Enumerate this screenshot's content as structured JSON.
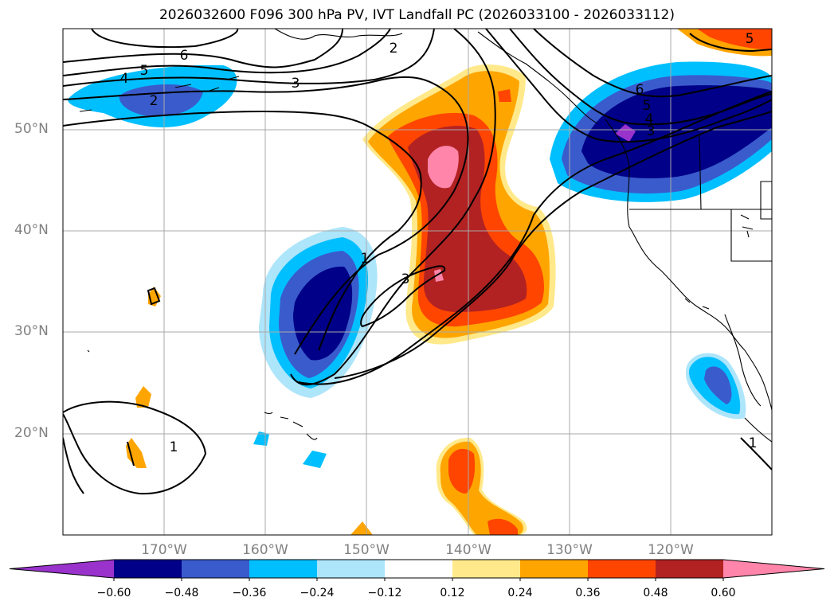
{
  "title": "2026032600 F096 300 hPa PV, IVT Landfall PC (2026033100 - 2026033112)",
  "lat_labels": [
    "50°N",
    "40°N",
    "30°N",
    "20°N"
  ],
  "lon_labels": [
    "170°W",
    "160°W",
    "150°W",
    "140°W",
    "130°W",
    "120°W"
  ],
  "contour_labels": [
    "6",
    "5",
    "4",
    "2",
    "3",
    "2",
    "1",
    "3",
    "1",
    "6",
    "5",
    "4",
    "3",
    "1",
    "5"
  ],
  "colorbar": {
    "ticks": [
      "−0.60",
      "−0.48",
      "−0.36",
      "−0.24",
      "−0.12",
      "0.12",
      "0.24",
      "0.36",
      "0.48",
      "0.60"
    ],
    "colors": [
      "#9933cc",
      "#000088",
      "#3a5bcc",
      "#00bfff",
      "#ade5fb",
      "#ffffff",
      "#ffe98a",
      "#ffa500",
      "#ff4500",
      "#b22222",
      "#ff85aa"
    ]
  },
  "colors": {
    "grid": "#a9a9a9",
    "coast": "#000000",
    "contour": "#000000"
  }
}
